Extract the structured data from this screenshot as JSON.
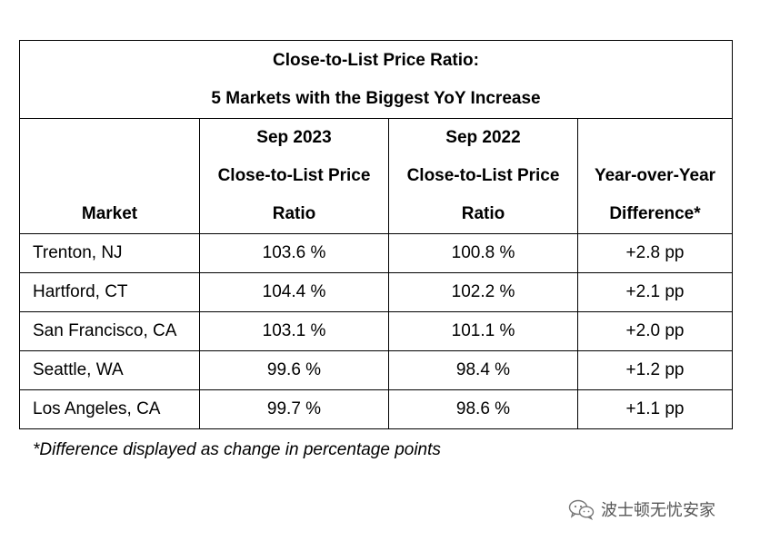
{
  "table": {
    "title_line1": "Close-to-List Price Ratio:",
    "title_line2": "5 Markets with the Biggest YoY Increase",
    "headers": {
      "market": "Market",
      "sep2023_line1": "Sep 2023",
      "sep2023_line2": "Close-to-List Price",
      "sep2023_line3": "Ratio",
      "sep2022_line1": "Sep 2022",
      "sep2022_line2": "Close-to-List Price",
      "sep2022_line3": "Ratio",
      "yoy_line1": "Year-over-Year",
      "yoy_line2": "Difference*"
    },
    "rows": [
      {
        "market": "Trenton, NJ",
        "sep2023": "103.6 %",
        "sep2022": "100.8 %",
        "yoy": "+2.8 pp"
      },
      {
        "market": "Hartford, CT",
        "sep2023": "104.4 %",
        "sep2022": "102.2 %",
        "yoy": "+2.1 pp"
      },
      {
        "market": "San Francisco, CA",
        "sep2023": "103.1 %",
        "sep2022": "101.1 %",
        "yoy": "+2.0 pp"
      },
      {
        "market": "Seattle, WA",
        "sep2023": "99.6 %",
        "sep2022": "98.4 %",
        "yoy": "+1.2 pp"
      },
      {
        "market": "Los Angeles, CA",
        "sep2023": "99.7 %",
        "sep2022": "98.6 %",
        "yoy": "+1.1 pp"
      }
    ]
  },
  "footnote": "*Difference displayed as change in percentage points",
  "watermark": {
    "text": "波士顿无忧安家",
    "icon": "wechat-icon"
  }
}
